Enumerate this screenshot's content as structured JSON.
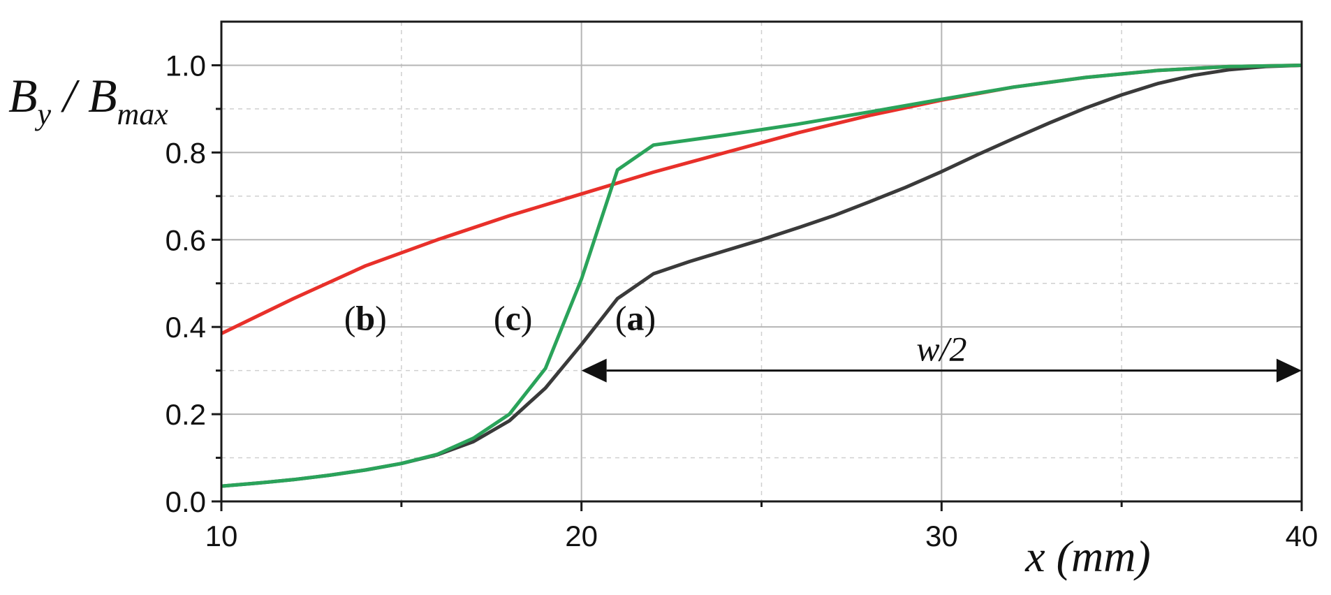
{
  "chart_data": {
    "type": "line",
    "xlabel": "x (mm)",
    "ylabel": {
      "main": "B",
      "sub1": "y",
      "sep": " / B",
      "sub2": "max"
    },
    "xlim": [
      10,
      40
    ],
    "ylim": [
      0,
      1.1
    ],
    "xticks": [
      10,
      20,
      30,
      40
    ],
    "xtick_labels": [
      "10",
      "20",
      "30",
      "40"
    ],
    "yticks": [
      0.0,
      0.2,
      0.4,
      0.6,
      0.8,
      1.0
    ],
    "ytick_labels": [
      "0.0",
      "0.2",
      "0.4",
      "0.6",
      "0.8",
      "1.0"
    ],
    "grid": true,
    "series": [
      {
        "name": "(a)",
        "color": "#3a3a3a",
        "x": [
          10,
          11,
          12,
          13,
          14,
          15,
          16,
          17,
          18,
          19,
          20,
          21,
          22,
          23,
          24,
          25,
          26,
          27,
          28,
          29,
          30,
          31,
          32,
          33,
          34,
          35,
          36,
          37,
          38,
          39,
          40
        ],
        "y": [
          0.035,
          0.042,
          0.05,
          0.06,
          0.072,
          0.087,
          0.107,
          0.137,
          0.185,
          0.26,
          0.36,
          0.465,
          0.522,
          0.55,
          0.575,
          0.6,
          0.627,
          0.655,
          0.687,
          0.72,
          0.756,
          0.795,
          0.832,
          0.868,
          0.902,
          0.932,
          0.958,
          0.977,
          0.99,
          0.997,
          1.0
        ]
      },
      {
        "name": "(b)",
        "color": "#e8302a",
        "x": [
          10,
          12,
          14,
          16,
          18,
          20,
          22,
          24,
          26,
          28,
          30,
          32,
          34,
          36,
          38,
          40
        ],
        "y": [
          0.385,
          0.465,
          0.54,
          0.6,
          0.655,
          0.705,
          0.755,
          0.8,
          0.845,
          0.885,
          0.92,
          0.95,
          0.972,
          0.988,
          0.997,
          1.0
        ]
      },
      {
        "name": "(c)",
        "color": "#2aa35a",
        "x": [
          10,
          11,
          12,
          13,
          14,
          15,
          16,
          17,
          18,
          19,
          20,
          21,
          22,
          24,
          26,
          28,
          30,
          32,
          34,
          36,
          38,
          40
        ],
        "y": [
          0.035,
          0.042,
          0.05,
          0.06,
          0.072,
          0.087,
          0.108,
          0.145,
          0.2,
          0.305,
          0.51,
          0.76,
          0.817,
          0.84,
          0.865,
          0.893,
          0.922,
          0.95,
          0.972,
          0.988,
          0.997,
          1.0
        ]
      }
    ],
    "annotations": {
      "label_a": {
        "open": "(",
        "letter": "a",
        "close": ")",
        "x": 21.5,
        "y": 0.42
      },
      "label_b": {
        "open": "(",
        "letter": "b",
        "close": ")",
        "x": 14,
        "y": 0.42
      },
      "label_c": {
        "open": "(",
        "letter": "c",
        "close": ")",
        "x": 18.1,
        "y": 0.42
      },
      "span": {
        "text": "w/2",
        "x_start": 20,
        "x_end": 40,
        "y": 0.3
      }
    }
  }
}
